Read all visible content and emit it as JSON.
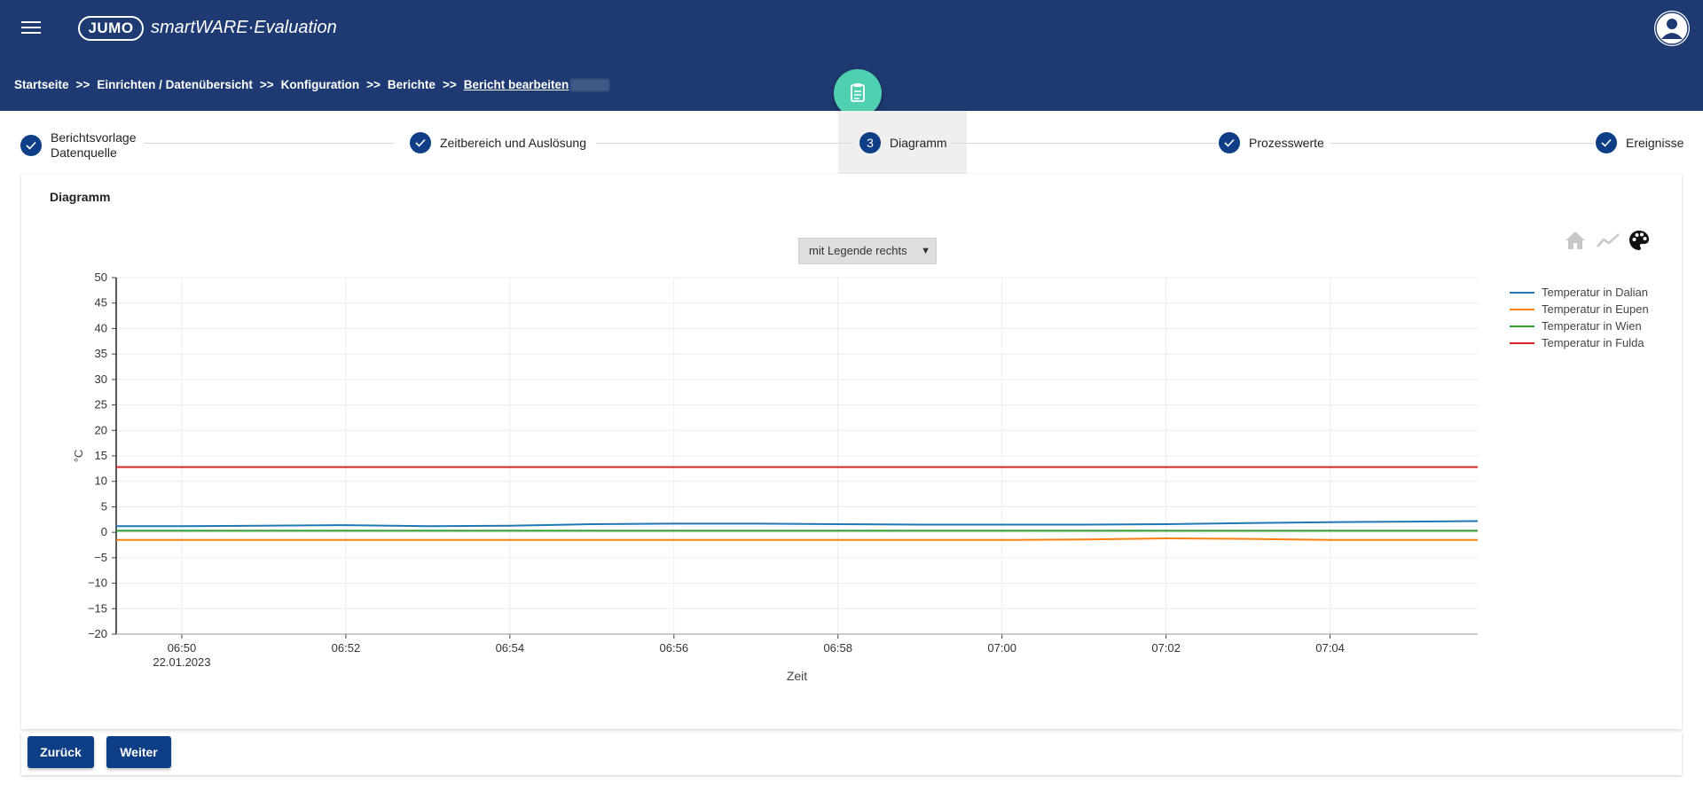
{
  "header": {
    "logo_text": "JUMO",
    "app_name": "smartWARE·Evaluation"
  },
  "breadcrumb": {
    "separator": ">>",
    "items": [
      "Startseite",
      "Einrichten / Datenübersicht",
      "Konfiguration",
      "Berichte",
      "Bericht bearbeiten"
    ]
  },
  "steps": [
    {
      "label": "Berichtsvorlage",
      "label_line2": "Datenquelle",
      "state": "done"
    },
    {
      "label": "Zeitbereich und Auslösung",
      "state": "done"
    },
    {
      "label": "Diagramm",
      "number": "3",
      "state": "active"
    },
    {
      "label": "Prozesswerte",
      "state": "done"
    },
    {
      "label": "Ereignisse",
      "state": "done"
    }
  ],
  "section_title": "Diagramm",
  "legend_select": {
    "value": "mit Legende rechts"
  },
  "toolbar_icons": [
    "home-icon",
    "trend-icon",
    "palette-icon"
  ],
  "colors": {
    "primary": "#0e3f86",
    "header": "#1f3a72",
    "accent": "#4fd1b1"
  },
  "chart_data": {
    "type": "line",
    "xlabel": "Zeit",
    "ylabel": "°C",
    "ylim": [
      -20,
      50
    ],
    "yticks": [
      50,
      45,
      40,
      35,
      30,
      25,
      20,
      15,
      10,
      5,
      0,
      -5,
      -10,
      -15,
      -20
    ],
    "xlim": [
      "06:49:12",
      "07:05:48"
    ],
    "xticks": [
      {
        "label": "06:50",
        "sublabel": "22.01.2023",
        "t": "06:50"
      },
      {
        "label": "06:52",
        "t": "06:52"
      },
      {
        "label": "06:54",
        "t": "06:54"
      },
      {
        "label": "06:56",
        "t": "06:56"
      },
      {
        "label": "06:58",
        "t": "06:58"
      },
      {
        "label": "07:00",
        "t": "07:00"
      },
      {
        "label": "07:02",
        "t": "07:02"
      },
      {
        "label": "07:04",
        "t": "07:04"
      }
    ],
    "grid": true,
    "legend_position": "right",
    "x": [
      "06:49:12",
      "06:50",
      "06:52",
      "06:53",
      "06:54",
      "06:55",
      "06:56",
      "06:57",
      "06:58",
      "06:59",
      "07:00",
      "07:01",
      "07:02",
      "07:03",
      "07:04",
      "07:05",
      "07:05:48"
    ],
    "series": [
      {
        "name": "Temperatur in Dalian",
        "color": "#1f77b4",
        "values": [
          1.2,
          1.2,
          1.4,
          1.2,
          1.3,
          1.6,
          1.7,
          1.7,
          1.6,
          1.5,
          1.5,
          1.5,
          1.6,
          1.8,
          2.0,
          2.1,
          2.2
        ]
      },
      {
        "name": "Temperatur in Eupen",
        "color": "#ff7f0e",
        "values": [
          -1.5,
          -1.5,
          -1.5,
          -1.5,
          -1.5,
          -1.5,
          -1.5,
          -1.5,
          -1.5,
          -1.5,
          -1.5,
          -1.4,
          -1.2,
          -1.3,
          -1.5,
          -1.5,
          -1.5
        ]
      },
      {
        "name": "Temperatur in Wien",
        "color": "#2ca02c",
        "values": [
          0.3,
          0.3,
          0.3,
          0.3,
          0.3,
          0.3,
          0.3,
          0.3,
          0.3,
          0.3,
          0.3,
          0.3,
          0.3,
          0.3,
          0.3,
          0.3,
          0.3
        ]
      },
      {
        "name": "Temperatur in Fulda",
        "color": "#d62728",
        "values": [
          12.8,
          12.8,
          12.8,
          12.8,
          12.8,
          12.8,
          12.8,
          12.8,
          12.8,
          12.8,
          12.8,
          12.8,
          12.8,
          12.8,
          12.8,
          12.8,
          12.8
        ]
      }
    ]
  },
  "buttons": {
    "back": "Zurück",
    "next": "Weiter"
  }
}
